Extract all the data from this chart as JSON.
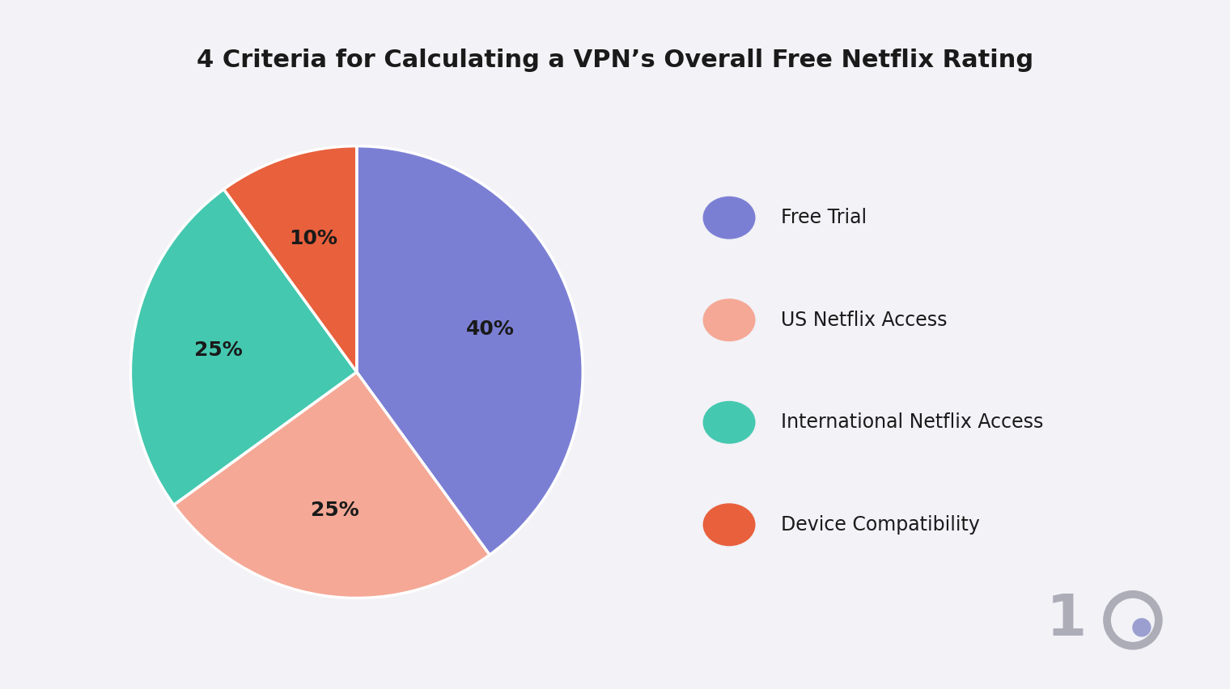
{
  "title": "4 Criteria for Calculating a VPN’s Overall Free Netflix Rating",
  "slices": [
    40,
    25,
    25,
    10
  ],
  "labels": [
    "Free Trial",
    "US Netflix Access",
    "International Netflix Access",
    "Device Compatibility"
  ],
  "pct_labels": [
    "40%",
    "25%",
    "25%",
    "10%"
  ],
  "colors": [
    "#7B7FD4",
    "#F5A896",
    "#45C8B0",
    "#E8603C"
  ],
  "background_color": "#F2F2F7",
  "text_color": "#1a1a1a",
  "startangle": 90,
  "title_fontsize": 22,
  "label_fontsize": 18,
  "legend_fontsize": 17
}
